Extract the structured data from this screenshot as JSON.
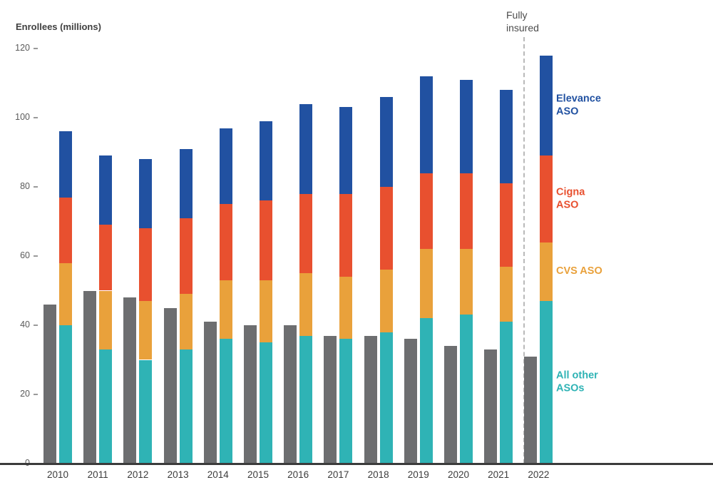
{
  "chart_data": {
    "type": "bar",
    "subtype": "grouped-and-stacked",
    "title": "",
    "ylabel": "Enrollees (millions)",
    "ylim": [
      0,
      120
    ],
    "yticks": [
      0,
      20,
      40,
      60,
      80,
      100,
      120
    ],
    "grid": false,
    "legend_position": "right",
    "categories": [
      "2010",
      "2011",
      "2012",
      "2013",
      "2014",
      "2015",
      "2016",
      "2017",
      "2018",
      "2019",
      "2020",
      "2021",
      "2022"
    ],
    "series": [
      {
        "name": "Fully insured",
        "role": "companion-bar",
        "color": "#6d6e70",
        "label": "Fully\ninsured",
        "values": [
          46,
          50,
          48,
          45,
          41,
          40,
          40,
          37,
          37,
          36,
          34,
          33,
          31
        ]
      },
      {
        "name": "All other ASOs",
        "role": "stack-segment",
        "color": "#2fb3b5",
        "label": "All other\nASOs",
        "values": [
          40,
          33,
          30,
          33,
          36,
          35,
          37,
          36,
          38,
          42,
          43,
          41,
          47
        ]
      },
      {
        "name": "CVS ASO",
        "role": "stack-segment",
        "color": "#e9a13b",
        "label": "CVS ASO",
        "values": [
          18,
          17,
          17,
          16,
          17,
          18,
          18,
          18,
          18,
          20,
          19,
          16,
          17
        ]
      },
      {
        "name": "Cigna ASO",
        "role": "stack-segment",
        "color": "#e8502f",
        "label": "Cigna\nASO",
        "values": [
          19,
          19,
          21,
          22,
          22,
          23,
          23,
          24,
          24,
          22,
          22,
          24,
          25
        ]
      },
      {
        "name": "Elevance ASO",
        "role": "stack-segment",
        "color": "#2151a1",
        "label": "Elevance\nASO",
        "values": [
          19,
          20,
          20,
          20,
          22,
          23,
          26,
          25,
          26,
          28,
          27,
          27,
          29
        ]
      }
    ],
    "annotations": {
      "fully_insured_label": "Fully\ninsured",
      "divider_before_category": "2022"
    }
  }
}
